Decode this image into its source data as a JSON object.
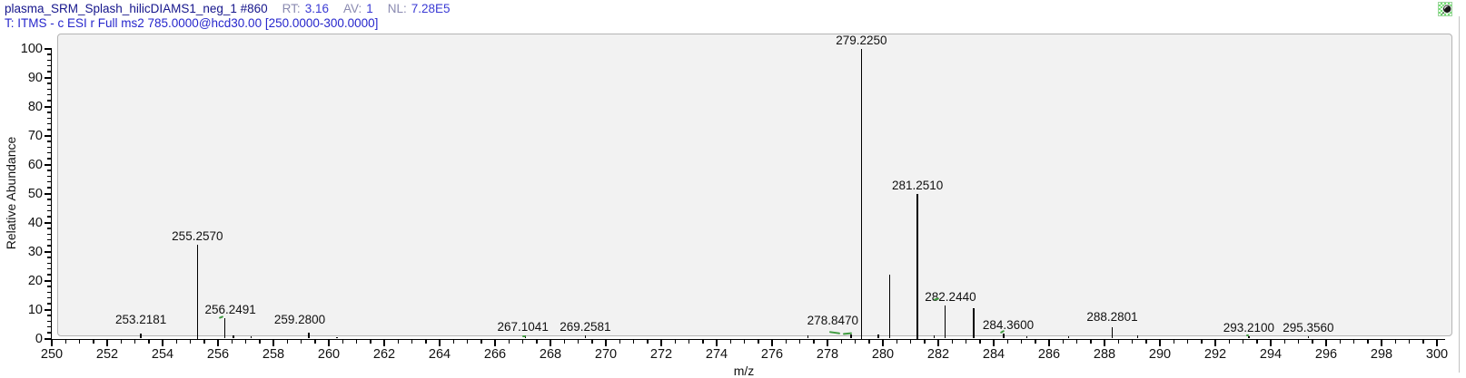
{
  "header": {
    "scan_id": "plasma_SRM_Splash_hilicDIAMS1_neg_1 #860",
    "fields": [
      {
        "label": "RT:",
        "value": "3.16"
      },
      {
        "label": "AV:",
        "value": "1"
      },
      {
        "label": "NL:",
        "value": "7.28E5"
      }
    ],
    "filter_line": "T: ITMS - c ESI r Full ms2 785.0000@hcd30.00 [250.0000-300.0000]"
  },
  "icons": {
    "pin": "pushpin-on-green-checker"
  },
  "colors": {
    "scan_id_text": "#16168c",
    "field_label_text": "#8a8ab0",
    "field_value_text": "#3a3ad4",
    "filter_text": "#2626cc",
    "peak_line": "#000000",
    "panel_fill": "#f2f2f2",
    "panel_border": "#b4b4b4",
    "centroid_flag_green": "#3f9b3f"
  },
  "chart_data": {
    "type": "bar",
    "chart_kind": "centroid-mass-spectrum",
    "title": "plasma_SRM_Splash_hilicDIAMS1_neg_1 #860 RT: 3.16 AV: 1 NL: 7.28E5",
    "subtitle": "T: ITMS - c ESI r Full ms2 785.0000@hcd30.00 [250.0000-300.0000]",
    "xlabel": "m/z",
    "ylabel": "Relative Abundance",
    "xlim": [
      250,
      300
    ],
    "ylim": [
      0,
      100
    ],
    "x_major_step": 2,
    "x_minor_step": 0.5,
    "y_major_step": 10,
    "y_minor_step": 2,
    "grid": false,
    "x_tick_labels": [
      250,
      252,
      254,
      256,
      258,
      260,
      262,
      264,
      266,
      268,
      270,
      272,
      274,
      276,
      278,
      280,
      282,
      284,
      286,
      288,
      290,
      292,
      294,
      296,
      298,
      300
    ],
    "y_tick_labels": [
      0,
      10,
      20,
      30,
      40,
      50,
      60,
      70,
      80,
      90,
      100
    ],
    "peaks": [
      {
        "mz": 253.2181,
        "intensity": 1.6,
        "label": "253.2181",
        "label_dy": 8
      },
      {
        "mz": 255.257,
        "intensity": 32.5,
        "label": "255.2570"
      },
      {
        "mz": 256.2491,
        "intensity": 7.0,
        "label": "256.2491",
        "label_dx": 6
      },
      {
        "mz": 256.55,
        "intensity": 1.0,
        "label": null
      },
      {
        "mz": 257.2,
        "intensity": 0.7,
        "label": null
      },
      {
        "mz": 259.28,
        "intensity": 2.0,
        "label": "259.2800",
        "label_dx": -10,
        "label_dy": 7
      },
      {
        "mz": 260.3,
        "intensity": 0.5,
        "label": null
      },
      {
        "mz": 267.1041,
        "intensity": 1.0,
        "label": "267.1041",
        "label_dx": -3
      },
      {
        "mz": 269.2581,
        "intensity": 1.0,
        "label": "269.2581"
      },
      {
        "mz": 277.3,
        "intensity": 1.0,
        "label": null
      },
      {
        "mz": 278.847,
        "intensity": 1.5,
        "label": "278.8470",
        "label_dx": -20,
        "label_dy": 8
      },
      {
        "mz": 279.225,
        "intensity": 100,
        "label": "279.2250"
      },
      {
        "mz": 279.83,
        "intensity": 1.5,
        "label": null
      },
      {
        "mz": 280.24,
        "intensity": 22,
        "label": null
      },
      {
        "mz": 281.251,
        "intensity": 50,
        "label": "281.2510"
      },
      {
        "mz": 281.85,
        "intensity": 1.0,
        "label": null
      },
      {
        "mz": 282.244,
        "intensity": 11.5,
        "label": "282.2440",
        "label_dx": 6
      },
      {
        "mz": 283.28,
        "intensity": 10.5,
        "label": null
      },
      {
        "mz": 284.36,
        "intensity": 1.8,
        "label": "284.3600",
        "label_dx": 5
      },
      {
        "mz": 285.2,
        "intensity": 0.7,
        "label": null
      },
      {
        "mz": 286.7,
        "intensity": 0.7,
        "label": null
      },
      {
        "mz": 288.2801,
        "intensity": 4.0,
        "label": "288.2801",
        "label_dy": 4
      },
      {
        "mz": 289.2,
        "intensity": 1.0,
        "label": null
      },
      {
        "mz": 293.21,
        "intensity": 0.8,
        "label": "293.2100"
      },
      {
        "mz": 295.356,
        "intensity": 0.8,
        "label": "295.3560"
      }
    ],
    "green_marks": [
      {
        "mz": 256.12,
        "intensity": 7.6,
        "w": 5,
        "angle": -20
      },
      {
        "mz": 267.05,
        "intensity": 1.2,
        "w": 4,
        "angle": 0
      },
      {
        "mz": 278.25,
        "intensity": 2.2,
        "w": 12,
        "angle": 8
      },
      {
        "mz": 278.72,
        "intensity": 1.9,
        "w": 10,
        "angle": -6
      },
      {
        "mz": 281.95,
        "intensity": 13.8,
        "w": 6,
        "angle": -15
      },
      {
        "mz": 284.3,
        "intensity": 2.8,
        "w": 5,
        "angle": -30
      },
      {
        "mz": 293.15,
        "intensity": 1.3,
        "w": 3,
        "angle": 0
      }
    ]
  }
}
